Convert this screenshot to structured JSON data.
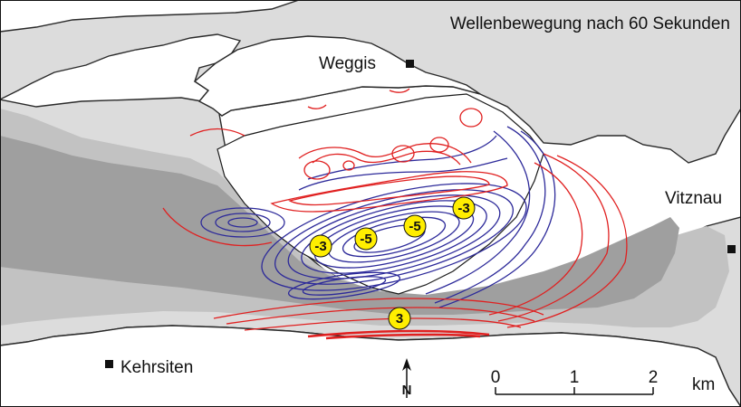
{
  "map": {
    "title": "Wellenbewegung nach 60 Sekunden",
    "places": {
      "weggis": "Weggis",
      "vitznau": "Vitznau",
      "kehrsiten": "Kehrsiten"
    },
    "wave_markers": [
      "-3",
      "-5",
      "-5",
      "-3",
      "3"
    ],
    "scale_bar": {
      "ticks": [
        "0",
        "1",
        "2"
      ],
      "unit": "km"
    },
    "north_label": "N",
    "colors": {
      "land": "#ffffff",
      "lake_shallow": "#dcdcdc",
      "lake_mid": "#c2c2c2",
      "lake_deep": "#9f9f9f",
      "positive_contour": "#e02020",
      "negative_contour": "#2d2a9a",
      "marker_fill": "#ffee00"
    }
  }
}
